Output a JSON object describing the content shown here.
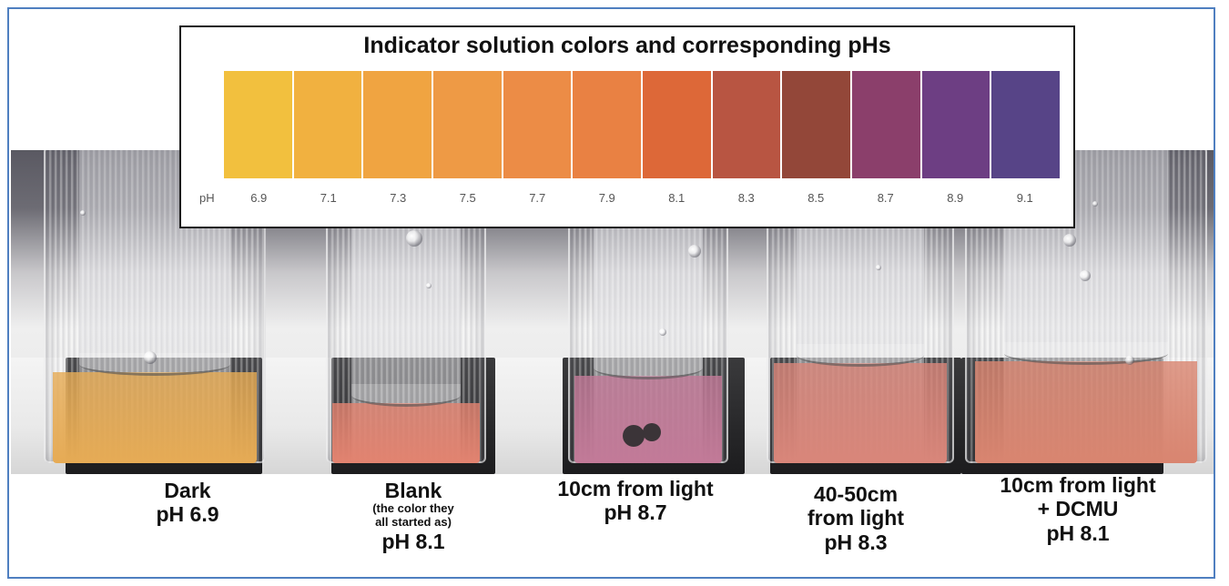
{
  "indicator_chart": {
    "title": "Indicator solution colors and corresponding pHs",
    "ph_label": "pH",
    "swatches": [
      {
        "ph": "6.9",
        "color": "#f2c03e"
      },
      {
        "ph": "7.1",
        "color": "#f1b140"
      },
      {
        "ph": "7.3",
        "color": "#f0a441"
      },
      {
        "ph": "7.5",
        "color": "#ee9a45"
      },
      {
        "ph": "7.7",
        "color": "#ec8c46"
      },
      {
        "ph": "7.9",
        "color": "#e98143"
      },
      {
        "ph": "8.1",
        "color": "#dd6838"
      },
      {
        "ph": "8.3",
        "color": "#b85542"
      },
      {
        "ph": "8.5",
        "color": "#934739"
      },
      {
        "ph": "8.7",
        "color": "#8b3f6b"
      },
      {
        "ph": "8.9",
        "color": "#6d3e83"
      },
      {
        "ph": "9.1",
        "color": "#574487"
      }
    ]
  },
  "samples": [
    {
      "label": "Dark",
      "note": "",
      "ph": "pH 6.9",
      "liquid": "#e6ab55"
    },
    {
      "label": "Blank",
      "note": "(the color they all started as)",
      "ph": "pH 8.1",
      "liquid": "#e28370"
    },
    {
      "label": "10cm from light",
      "note": "",
      "ph": "pH 8.7",
      "liquid": "#c27a98"
    },
    {
      "label": "40-50cm from light",
      "note": "",
      "ph": "pH 8.3",
      "liquid": "#d9867a"
    },
    {
      "label": "10cm from light + DCMU",
      "note": "",
      "ph": "pH 8.1",
      "liquid": "#d98570"
    }
  ],
  "captions": {
    "c1": {
      "line1": "Dark",
      "line2": "pH 6.9"
    },
    "c2": {
      "line1": "Blank",
      "note1": "(the color they",
      "note2": "all started as)",
      "line2": "pH 8.1"
    },
    "c3": {
      "line1": "10cm from light",
      "line2": "pH 8.7"
    },
    "c4": {
      "line1": "40-50cm",
      "line2": "from light",
      "line3": "pH 8.3"
    },
    "c5": {
      "line1": "10cm from light",
      "line2": "+ DCMU",
      "line3": "pH 8.1"
    }
  },
  "colors": {
    "frame_border": "#4f7fc0"
  }
}
